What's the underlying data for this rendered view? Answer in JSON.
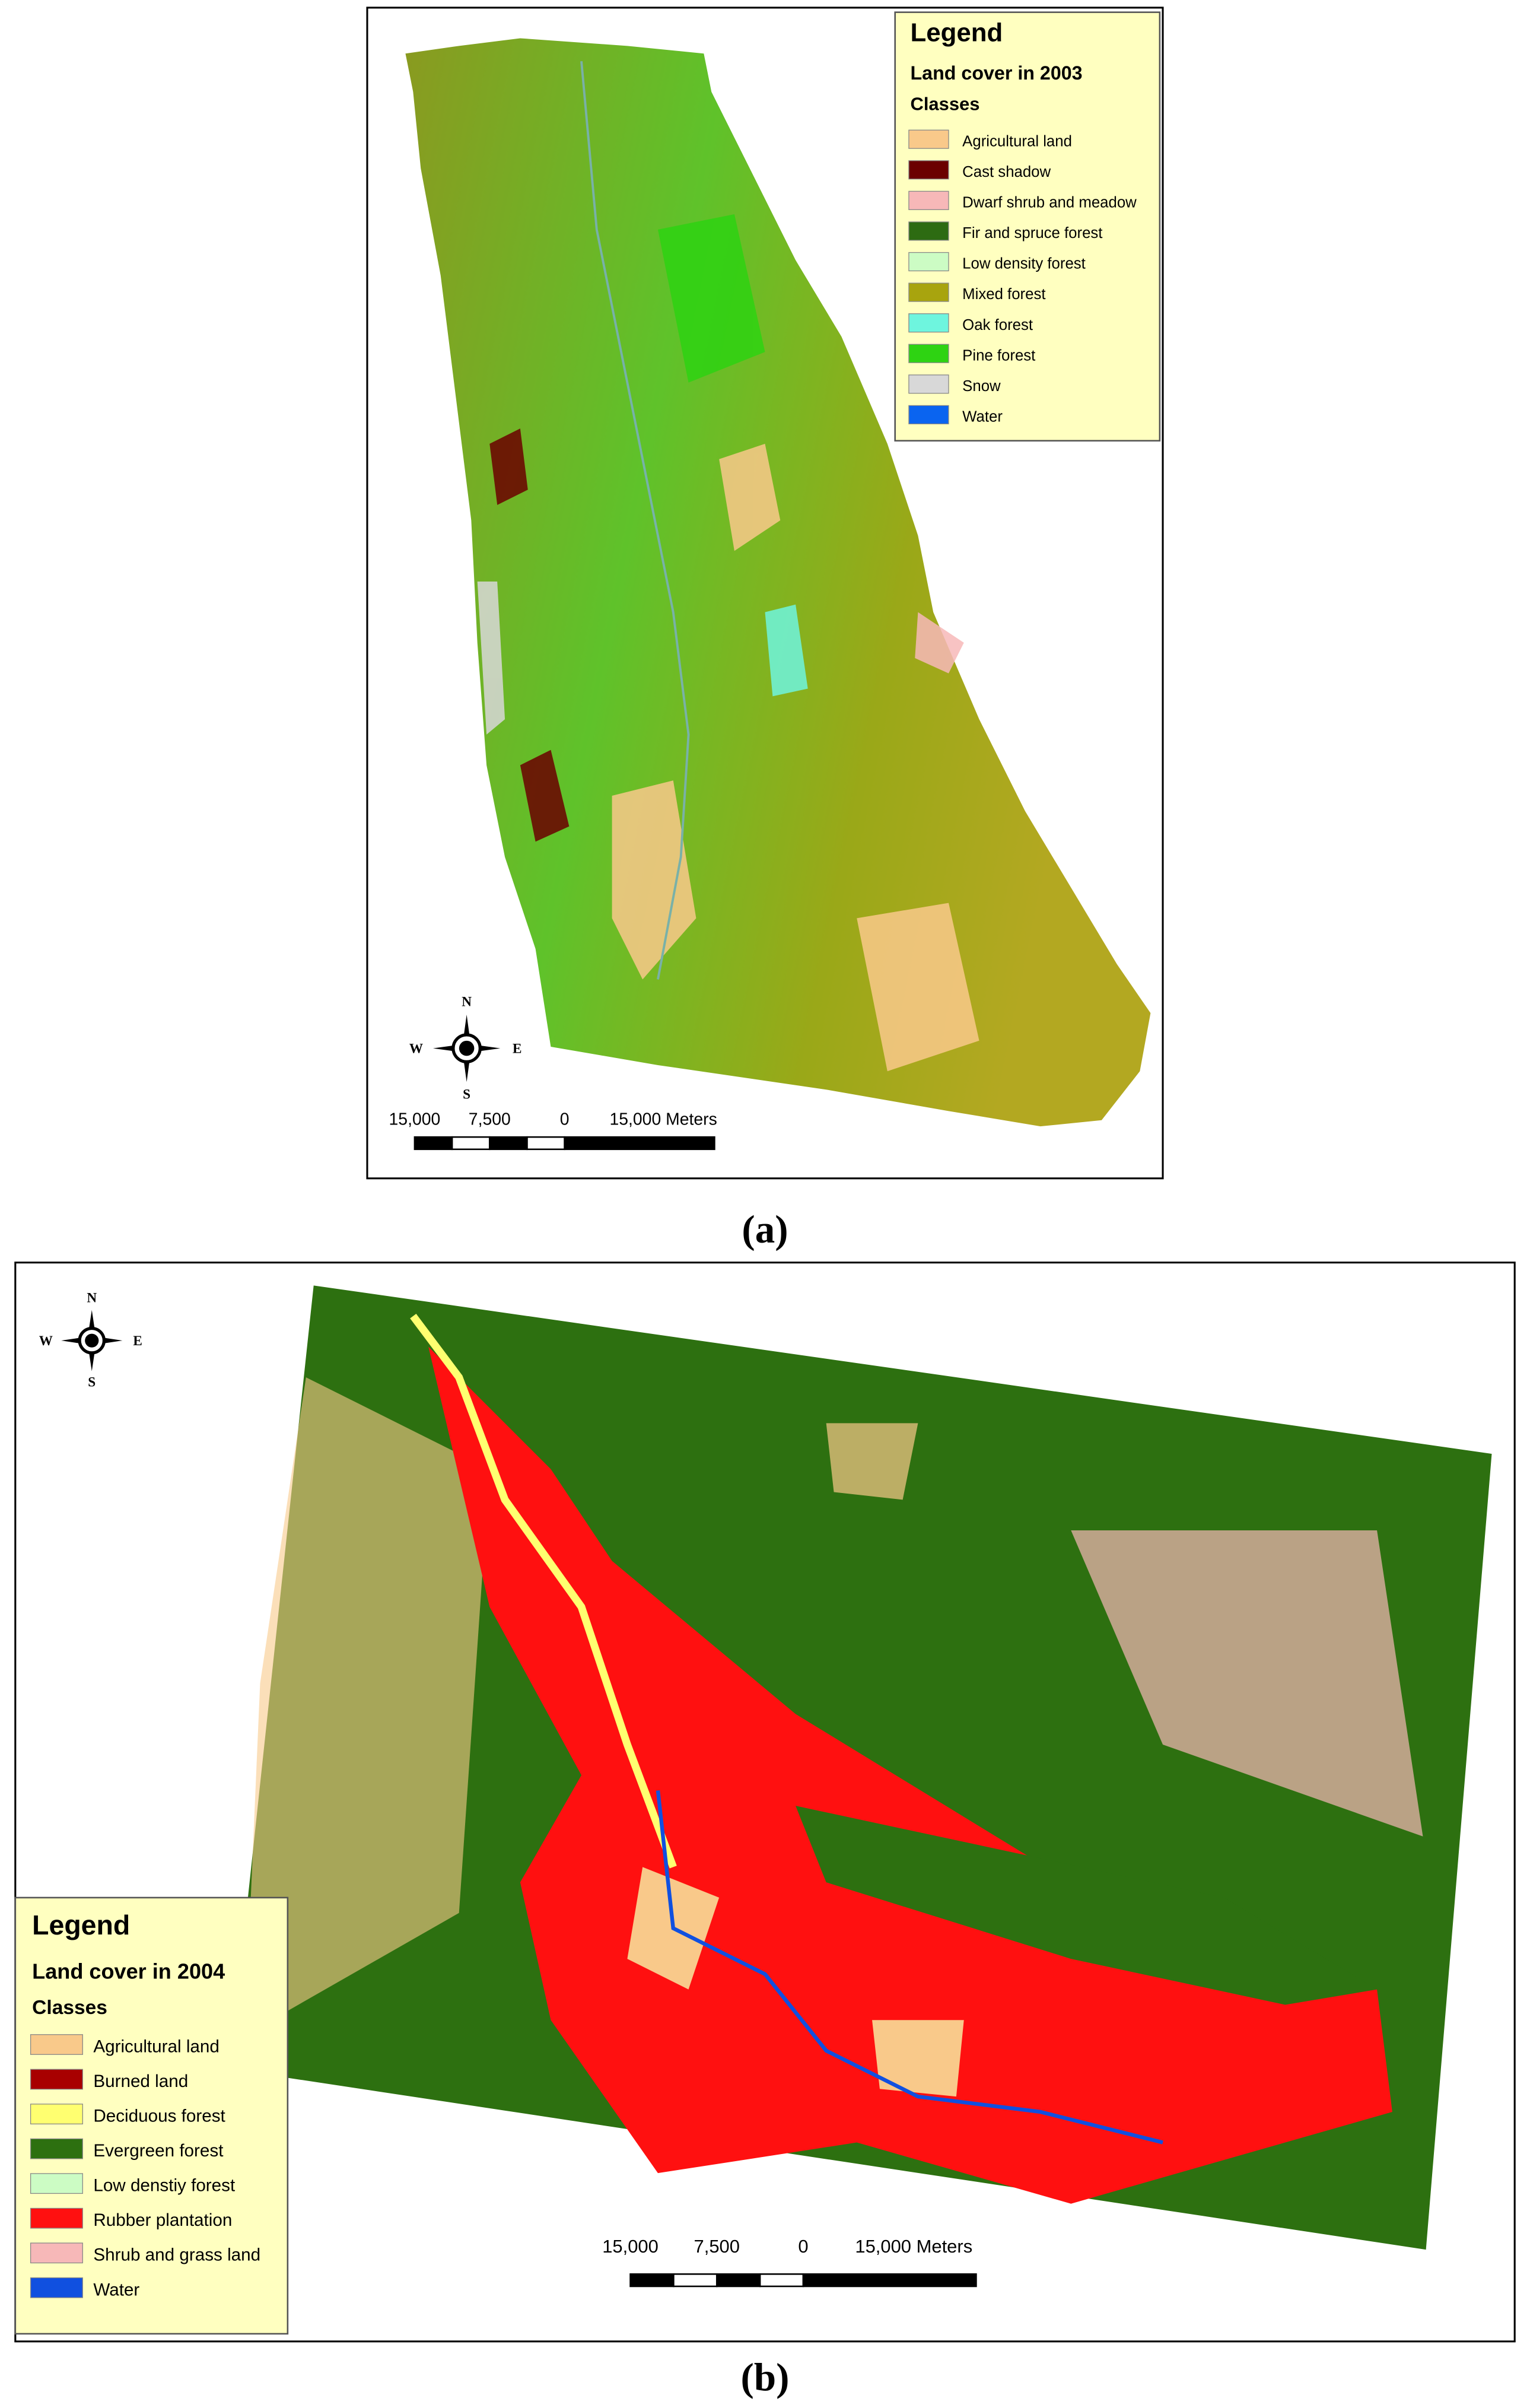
{
  "panels": [
    {
      "caption": "(a)",
      "legend": {
        "title": "Legend",
        "subtitle": "Land cover in 2003",
        "heading": "Classes",
        "items": [
          {
            "label": "Agricultural land",
            "color": "#f9c98a"
          },
          {
            "label": "Cast shadow",
            "color": "#6b0000"
          },
          {
            "label": "Dwarf shrub and meadow",
            "color": "#f7b8b8"
          },
          {
            "label": "Fir and spruce forest",
            "color": "#2d6b12"
          },
          {
            "label": "Low density forest",
            "color": "#ccfcc4"
          },
          {
            "label": "Mixed forest",
            "color": "#a8a40e"
          },
          {
            "label": "Oak forest",
            "color": "#6ef5de"
          },
          {
            "label": "Pine forest",
            "color": "#2ed312"
          },
          {
            "label": "Snow",
            "color": "#d8d8d8"
          },
          {
            "label": "Water",
            "color": "#0a64f0"
          }
        ]
      },
      "compass": {
        "north": "N",
        "south": "S",
        "east": "E",
        "west": "W"
      },
      "scale_bar": {
        "labels": [
          "15,000",
          "7,500",
          "0",
          "15,000 Meters"
        ]
      }
    },
    {
      "caption": "(b)",
      "legend": {
        "title": "Legend",
        "subtitle": "Land cover in 2004",
        "heading": "Classes",
        "items": [
          {
            "label": "Agricultural land",
            "color": "#f9c98a"
          },
          {
            "label": "Burned land",
            "color": "#a80000"
          },
          {
            "label": "Deciduous forest",
            "color": "#ffff70"
          },
          {
            "label": "Evergreen forest",
            "color": "#2d7010"
          },
          {
            "label": "Low denstiy forest",
            "color": "#ccfcc4"
          },
          {
            "label": "Rubber plantation",
            "color": "#ff1010"
          },
          {
            "label": "Shrub and grass land",
            "color": "#f7b8b8"
          },
          {
            "label": "Water",
            "color": "#1050e0"
          }
        ]
      },
      "compass": {
        "north": "N",
        "south": "S",
        "east": "E",
        "west": "W"
      },
      "scale_bar": {
        "labels": [
          "15,000",
          "7,500",
          "0",
          "15,000 Meters"
        ]
      }
    }
  ]
}
